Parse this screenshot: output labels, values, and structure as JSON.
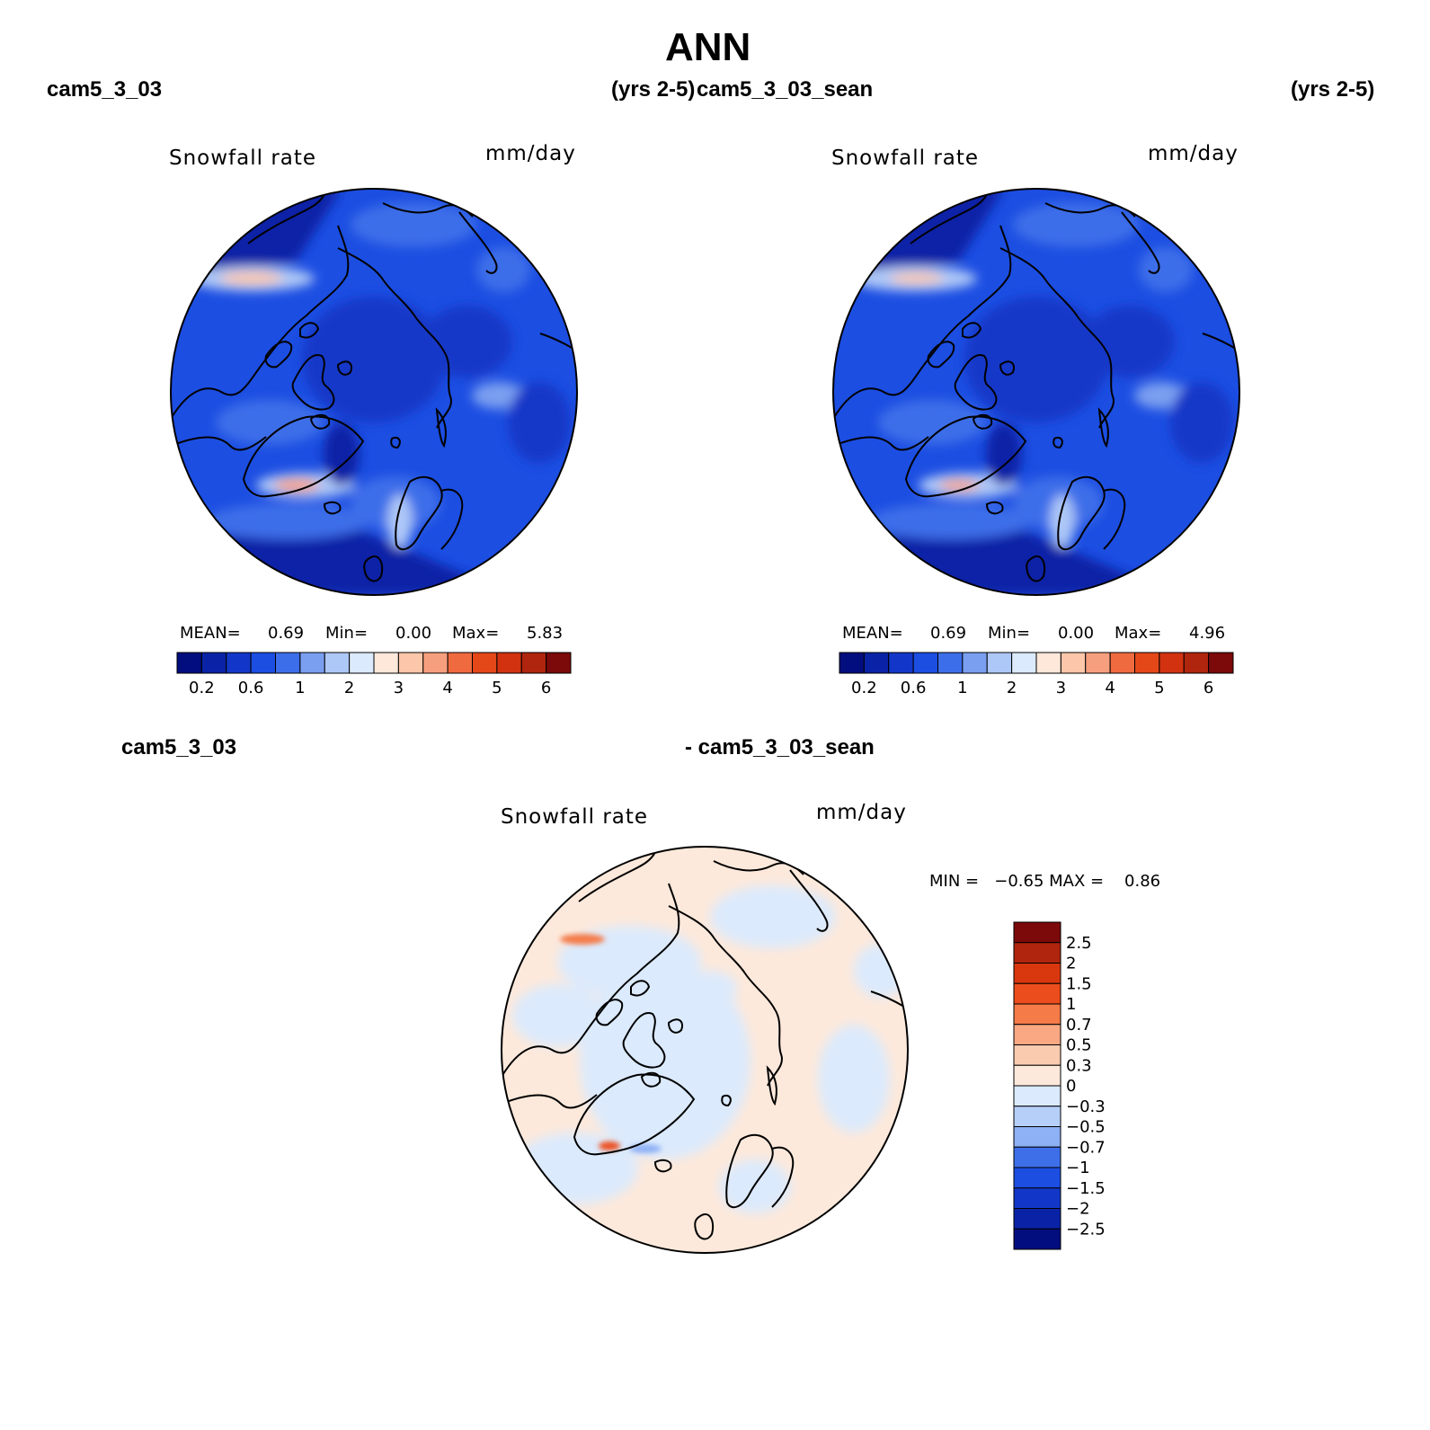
{
  "title": "ANN",
  "panels": [
    {
      "case": "cam5_3_03",
      "years": "(yrs 2-5)",
      "field": "Snowfall rate",
      "units": "mm/day",
      "stats": {
        "mean_label": "MEAN=",
        "mean": "0.69",
        "min_label": "Min=",
        "min": "0.00",
        "max_label": "Max=",
        "max": "5.83"
      }
    },
    {
      "case": "cam5_3_03_sean",
      "years": "(yrs 2-5)",
      "field": "Snowfall rate",
      "units": "mm/day",
      "stats": {
        "mean_label": "MEAN=",
        "mean": "0.69",
        "min_label": "Min=",
        "min": "0.00",
        "max_label": "Max=",
        "max": "4.96"
      }
    }
  ],
  "diff_panel": {
    "case_a": "cam5_3_03",
    "case_b": "- cam5_3_03_sean",
    "field": "Snowfall rate",
    "units": "mm/day",
    "min_max": "MIN =   −0.65 MAX =    0.86"
  },
  "colorbar_abs": {
    "colors": [
      "#020e7e",
      "#0a23a6",
      "#1237c8",
      "#1c4ee2",
      "#3d6ee9",
      "#7a9ff0",
      "#adc7f7",
      "#dbeafd",
      "#fde8da",
      "#fbc6a9",
      "#f69f7e",
      "#ef6a3f",
      "#e44718",
      "#d23210",
      "#b0250d",
      "#7c0a0a"
    ],
    "labels": [
      "0.2",
      "0.6",
      "1",
      "2",
      "3",
      "4",
      "5",
      "6"
    ]
  },
  "colorbar_diff": {
    "colors": [
      "#7c0a0a",
      "#b0250d",
      "#d9380f",
      "#ec4d1c",
      "#f57b48",
      "#f9a883",
      "#fbcbb0",
      "#fde9db",
      "#dbeafd",
      "#b6cff9",
      "#8eb0f4",
      "#3e6fe8",
      "#1c4ee2",
      "#1237c8",
      "#0a23a6",
      "#020e7e"
    ],
    "labels": [
      "2.5",
      "2",
      "1.5",
      "1",
      "0.7",
      "0.5",
      "0.3",
      "0",
      "−0.3",
      "−0.5",
      "−0.7",
      "−1",
      "−1.5",
      "−2",
      "−2.5"
    ]
  }
}
